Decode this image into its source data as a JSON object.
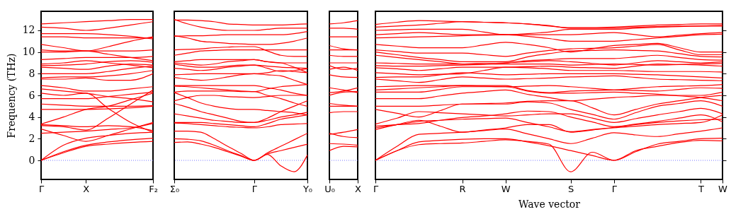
{
  "chart_data": [
    {
      "type": "line",
      "ylabel": "Frequency (THz)",
      "categories": [
        "Γ",
        null,
        "X",
        null,
        null,
        "F₂"
      ],
      "ylim": [
        -1.76,
        13.76
      ],
      "yticks": [
        0,
        2,
        4,
        6,
        8,
        10,
        12
      ],
      "ref_lines": [
        {
          "axis": "y",
          "value": 0,
          "color": "#5555ff",
          "line_style": "dotted"
        }
      ],
      "series": [
        {
          "color": "#ff0000",
          "values": [
            0,
            0.7,
            1.3,
            1.5,
            1.65,
            1.75
          ]
        },
        {
          "color": "#ff0000",
          "values": [
            0,
            0.8,
            1.4,
            1.7,
            1.9,
            2.05
          ]
        },
        {
          "color": "#ff0000",
          "values": [
            0,
            1.4,
            2.05,
            2.3,
            2.5,
            2.6
          ]
        },
        {
          "color": "#ff0000",
          "values": [
            2.9,
            2.3,
            1.75,
            2.3,
            2.9,
            3.5
          ]
        },
        {
          "color": "#ff0000",
          "values": [
            2.5,
            2.6,
            2.7,
            2.85,
            3.0,
            3.4
          ]
        },
        {
          "color": "#ff0000",
          "values": [
            3.2,
            3.1,
            2.8,
            3.9,
            5.2,
            6.5
          ]
        },
        {
          "color": "#ff0000",
          "values": [
            3.3,
            3.2,
            3.1,
            3.2,
            3.1,
            2.75
          ]
        },
        {
          "color": "#ff0000",
          "values": [
            3.35,
            4.0,
            4.7,
            5.0,
            5.6,
            6.2
          ]
        },
        {
          "color": "#ff0000",
          "values": [
            4.7,
            4.7,
            4.7,
            4.75,
            4.85,
            5.0
          ]
        },
        {
          "color": "#ff0000",
          "values": [
            5.2,
            5.1,
            5.0,
            5.0,
            5.0,
            5.05
          ]
        },
        {
          "color": "#ff0000",
          "values": [
            5.7,
            5.7,
            5.7,
            5.9,
            6.1,
            6.3
          ]
        },
        {
          "color": "#ff0000",
          "values": [
            6.2,
            6.0,
            6.2,
            4.8,
            3.5,
            2.6
          ]
        },
        {
          "color": "#ff0000",
          "values": [
            6.6,
            6.4,
            6.2,
            5.9,
            5.7,
            5.4
          ]
        },
        {
          "color": "#ff0000",
          "values": [
            6.9,
            6.7,
            6.4,
            6.4,
            6.6,
            6.8
          ]
        },
        {
          "color": "#ff0000",
          "values": [
            7.5,
            7.5,
            7.6,
            7.4,
            7.4,
            8.0
          ]
        },
        {
          "color": "#ff0000",
          "values": [
            7.6,
            7.7,
            7.7,
            7.8,
            8.0,
            8.3
          ]
        },
        {
          "color": "#ff0000",
          "values": [
            8.0,
            8.0,
            8.0,
            8.2,
            8.5,
            8.7
          ]
        },
        {
          "color": "#ff0000",
          "values": [
            8.6,
            8.5,
            8.4,
            8.7,
            8.9,
            8.8
          ]
        },
        {
          "color": "#ff0000",
          "values": [
            8.75,
            8.8,
            8.9,
            9.1,
            9.2,
            9.05
          ]
        },
        {
          "color": "#ff0000",
          "values": [
            8.9,
            9.0,
            9.2,
            9.0,
            8.8,
            8.55
          ]
        },
        {
          "color": "#ff0000",
          "values": [
            9.3,
            9.4,
            9.5,
            9.5,
            9.5,
            9.6
          ]
        },
        {
          "color": "#ff0000",
          "values": [
            10.0,
            10.0,
            10.1,
            9.8,
            9.5,
            9.2
          ]
        },
        {
          "color": "#ff0000",
          "values": [
            10.2,
            10.1,
            10.1,
            10.5,
            11.0,
            11.4
          ]
        },
        {
          "color": "#ff0000",
          "values": [
            10.7,
            10.4,
            10.1,
            10.1,
            10.1,
            10.2
          ]
        },
        {
          "color": "#ff0000",
          "values": [
            11.4,
            11.4,
            11.3,
            11.3,
            11.3,
            11.3
          ]
        },
        {
          "color": "#ff0000",
          "values": [
            11.7,
            11.7,
            11.7,
            11.6,
            11.45,
            11.2
          ]
        },
        {
          "color": "#ff0000",
          "values": [
            12.3,
            12.2,
            12.0,
            12.2,
            12.5,
            12.8
          ]
        },
        {
          "color": "#ff0000",
          "values": [
            12.6,
            12.7,
            12.8,
            12.9,
            13.0,
            13.0
          ]
        }
      ]
    },
    {
      "type": "line",
      "tick_labels": "x",
      "categories": [
        "Σ₀",
        null,
        null,
        null,
        null,
        null,
        "Γ",
        null,
        null,
        null,
        "Y₀"
      ],
      "ylim": [
        -1.76,
        13.76
      ],
      "ref_lines": [
        {
          "axis": "y",
          "value": 0,
          "color": "#5555ff",
          "line_style": "dotted"
        }
      ],
      "series": [
        {
          "color": "#ff0000",
          "values": [
            1.65,
            1.7,
            1.5,
            1.2,
            0.8,
            0.4,
            0,
            0.55,
            -0.5,
            -1.05,
            0.5
          ]
        },
        {
          "color": "#ff0000",
          "values": [
            2.0,
            1.95,
            1.8,
            1.4,
            0.9,
            0.45,
            0,
            0.6,
            0.9,
            1.2,
            1.5
          ]
        },
        {
          "color": "#ff0000",
          "values": [
            2.7,
            2.7,
            2.6,
            2.0,
            1.3,
            0.65,
            0,
            0.7,
            1.3,
            1.9,
            2.5
          ]
        },
        {
          "color": "#ff0000",
          "values": [
            3.45,
            3.4,
            3.3,
            3.2,
            3.1,
            3.05,
            3.0,
            3.1,
            3.3,
            3.35,
            3.4
          ]
        },
        {
          "color": "#ff0000",
          "values": [
            3.5,
            3.5,
            3.5,
            3.4,
            3.3,
            3.2,
            3.1,
            3.4,
            3.8,
            4.0,
            4.2
          ]
        },
        {
          "color": "#ff0000",
          "values": [
            4.3,
            4.1,
            3.9,
            3.7,
            3.6,
            3.5,
            3.5,
            3.7,
            4.0,
            4.2,
            4.45
          ]
        },
        {
          "color": "#ff0000",
          "values": [
            5.25,
            4.9,
            4.5,
            4.2,
            3.9,
            3.6,
            3.5,
            3.9,
            4.5,
            5.0,
            5.5
          ]
        },
        {
          "color": "#ff0000",
          "values": [
            5.5,
            5.8,
            6.0,
            6.0,
            5.9,
            5.85,
            5.8,
            5.9,
            6.0,
            6.0,
            6.0
          ]
        },
        {
          "color": "#ff0000",
          "values": [
            6.25,
            5.8,
            5.3,
            5.0,
            4.8,
            4.7,
            4.7,
            4.6,
            4.5,
            4.4,
            4.2
          ]
        },
        {
          "color": "#ff0000",
          "values": [
            6.3,
            6.4,
            6.4,
            6.4,
            6.4,
            6.35,
            6.35,
            6.0,
            5.7,
            5.3,
            5.0
          ]
        },
        {
          "color": "#ff0000",
          "values": [
            6.9,
            6.9,
            6.9,
            6.9,
            6.9,
            6.9,
            6.9,
            6.7,
            6.5,
            6.2,
            6.0
          ]
        },
        {
          "color": "#ff0000",
          "values": [
            6.85,
            6.8,
            6.7,
            6.6,
            6.5,
            6.4,
            6.35,
            6.6,
            6.8,
            6.9,
            7.0
          ]
        },
        {
          "color": "#ff0000",
          "values": [
            7.65,
            7.5,
            7.4,
            7.5,
            7.7,
            7.9,
            8.0,
            7.9,
            7.8,
            7.4,
            7.0
          ]
        },
        {
          "color": "#ff0000",
          "values": [
            7.9,
            7.95,
            8.0,
            8.0,
            8.0,
            8.0,
            8.0,
            8.1,
            8.3,
            8.2,
            8.1
          ]
        },
        {
          "color": "#ff0000",
          "values": [
            8.5,
            8.4,
            8.3,
            8.4,
            8.6,
            8.7,
            8.8,
            8.7,
            8.6,
            8.55,
            8.5
          ]
        },
        {
          "color": "#ff0000",
          "values": [
            8.9,
            8.7,
            8.6,
            8.6,
            8.7,
            8.8,
            8.8,
            8.5,
            8.2,
            8.3,
            8.45
          ]
        },
        {
          "color": "#ff0000",
          "values": [
            9.1,
            9.2,
            9.3,
            9.3,
            9.3,
            9.3,
            9.3,
            9.1,
            9.0,
            8.6,
            8.1
          ]
        },
        {
          "color": "#ff0000",
          "values": [
            9.0,
            8.9,
            8.8,
            8.9,
            9.1,
            9.2,
            9.3,
            9.1,
            9.0,
            9.0,
            9.0
          ]
        },
        {
          "color": "#ff0000",
          "values": [
            9.7,
            9.9,
            10.1,
            10.15,
            10.2,
            10.2,
            10.2,
            10.2,
            10.2,
            10.2,
            10.2
          ]
        },
        {
          "color": "#ff0000",
          "values": [
            10.2,
            10.25,
            10.3,
            10.4,
            10.45,
            10.5,
            10.5,
            10.1,
            9.7,
            9.6,
            9.6
          ]
        },
        {
          "color": "#ff0000",
          "values": [
            11.5,
            11.3,
            11.0,
            10.9,
            10.8,
            10.75,
            10.7,
            10.7,
            10.8,
            11.0,
            11.3
          ]
        },
        {
          "color": "#ff0000",
          "values": [
            11.45,
            11.5,
            11.5,
            11.55,
            11.6,
            11.6,
            11.6,
            11.6,
            11.6,
            11.7,
            11.9
          ]
        },
        {
          "color": "#ff0000",
          "values": [
            13.0,
            12.6,
            12.3,
            12.1,
            12.0,
            12.0,
            12.0,
            12.1,
            12.2,
            12.2,
            12.2
          ]
        },
        {
          "color": "#ff0000",
          "values": [
            12.95,
            12.95,
            12.9,
            12.8,
            12.6,
            12.55,
            12.5,
            12.5,
            12.5,
            12.55,
            12.6
          ]
        }
      ]
    },
    {
      "type": "line",
      "tick_labels": "x",
      "categories": [
        "U₀",
        null,
        "X"
      ],
      "ylim": [
        -1.76,
        13.76
      ],
      "ref_lines": [
        {
          "axis": "y",
          "value": 0,
          "color": "#5555ff",
          "line_style": "dotted"
        }
      ],
      "series": [
        {
          "color": "#ff0000",
          "values": [
            0.9,
            1.3,
            1.25
          ]
        },
        {
          "color": "#ff0000",
          "values": [
            1.55,
            1.5,
            1.4
          ]
        },
        {
          "color": "#ff0000",
          "values": [
            2.5,
            2.2,
            2.1
          ]
        },
        {
          "color": "#ff0000",
          "values": [
            2.4,
            2.6,
            2.85
          ]
        },
        {
          "color": "#ff0000",
          "values": [
            4.4,
            4.5,
            4.5
          ]
        },
        {
          "color": "#ff0000",
          "values": [
            5.0,
            5.0,
            5.0
          ]
        },
        {
          "color": "#ff0000",
          "values": [
            5.25,
            5.1,
            5.0
          ]
        },
        {
          "color": "#ff0000",
          "values": [
            6.0,
            6.3,
            6.35
          ]
        },
        {
          "color": "#ff0000",
          "values": [
            6.25,
            6.4,
            6.7
          ]
        },
        {
          "color": "#ff0000",
          "values": [
            6.7,
            6.5,
            6.25
          ]
        },
        {
          "color": "#ff0000",
          "values": [
            7.9,
            7.7,
            7.65
          ]
        },
        {
          "color": "#ff0000",
          "values": [
            8.4,
            8.6,
            8.3
          ]
        },
        {
          "color": "#ff0000",
          "values": [
            8.75,
            8.4,
            8.5
          ]
        },
        {
          "color": "#ff0000",
          "values": [
            9.0,
            9.0,
            9.0
          ]
        },
        {
          "color": "#ff0000",
          "values": [
            9.7,
            9.6,
            9.6
          ]
        },
        {
          "color": "#ff0000",
          "values": [
            10.2,
            10.2,
            10.2
          ]
        },
        {
          "color": "#ff0000",
          "values": [
            10.6,
            10.3,
            10.2
          ]
        },
        {
          "color": "#ff0000",
          "values": [
            11.4,
            11.4,
            11.4
          ]
        },
        {
          "color": "#ff0000",
          "values": [
            12.2,
            12.2,
            12.1
          ]
        },
        {
          "color": "#ff0000",
          "values": [
            12.6,
            12.7,
            12.9
          ]
        }
      ]
    },
    {
      "type": "line",
      "tick_labels": "x",
      "xlabel": "Wave vector",
      "categories": [
        "Γ",
        null,
        null,
        null,
        "R",
        null,
        "W",
        null,
        null,
        "S",
        null,
        "Γ",
        null,
        null,
        null,
        "T",
        "W"
      ],
      "ylim": [
        -1.76,
        13.76
      ],
      "yticks": [
        0,
        2,
        4,
        6,
        8,
        10,
        12
      ],
      "ref_lines": [
        {
          "axis": "y",
          "value": 0,
          "color": "#5555ff",
          "line_style": "dotted"
        }
      ],
      "series": [
        {
          "color": "#ff0000",
          "values": [
            0,
            0.9,
            1.45,
            1.55,
            1.6,
            1.75,
            1.9,
            1.75,
            1.5,
            -1.05,
            0.75,
            0,
            0.9,
            1.3,
            1.65,
            1.85,
            1.8
          ]
        },
        {
          "color": "#ff0000",
          "values": [
            0,
            0.9,
            1.7,
            1.85,
            1.95,
            2.0,
            2.0,
            1.7,
            1.35,
            0.9,
            0.45,
            0,
            0.8,
            1.5,
            1.75,
            2.0,
            2.05
          ]
        },
        {
          "color": "#ff0000",
          "values": [
            0,
            1.3,
            2.4,
            2.5,
            2.6,
            2.75,
            2.9,
            2.45,
            2.0,
            1.55,
            2.05,
            2.55,
            2.35,
            2.2,
            2.45,
            2.7,
            3.0
          ]
        },
        {
          "color": "#ff0000",
          "values": [
            2.85,
            3.3,
            3.7,
            3.15,
            2.6,
            2.8,
            3.0,
            3.3,
            3.3,
            2.6,
            2.8,
            3.0,
            3.15,
            3.3,
            3.4,
            3.5,
            4.2
          ]
        },
        {
          "color": "#ff0000",
          "values": [
            3.0,
            3.3,
            3.6,
            3.7,
            3.8,
            3.85,
            3.9,
            3.5,
            3.1,
            2.65,
            2.85,
            3.05,
            3.3,
            3.5,
            3.65,
            3.75,
            3.8
          ]
        },
        {
          "color": "#ff0000",
          "values": [
            3.15,
            3.3,
            3.4,
            3.7,
            3.95,
            4.1,
            4.3,
            4.55,
            4.5,
            4.0,
            3.55,
            3.1,
            3.35,
            3.6,
            3.9,
            4.2,
            3.55
          ]
        },
        {
          "color": "#ff0000",
          "values": [
            3.35,
            3.9,
            4.5,
            4.4,
            4.3,
            4.2,
            4.1,
            4.2,
            4.3,
            4.3,
            3.9,
            3.5,
            3.85,
            4.2,
            4.5,
            4.8,
            4.3
          ]
        },
        {
          "color": "#ff0000",
          "values": [
            4.7,
            4.35,
            4.0,
            4.6,
            5.2,
            5.2,
            5.2,
            5.4,
            5.3,
            4.7,
            4.25,
            3.8,
            4.4,
            5.0,
            5.25,
            5.5,
            5.0
          ]
        },
        {
          "color": "#ff0000",
          "values": [
            5.0,
            5.0,
            5.0,
            5.1,
            5.2,
            5.25,
            5.3,
            5.45,
            5.5,
            5.5,
            4.85,
            4.2,
            4.7,
            5.2,
            5.5,
            5.8,
            6.0
          ]
        },
        {
          "color": "#ff0000",
          "values": [
            5.7,
            5.7,
            5.7,
            5.95,
            6.2,
            6.35,
            6.5,
            6.1,
            5.8,
            5.5,
            5.65,
            5.8,
            5.9,
            6.0,
            6.0,
            6.0,
            6.3
          ]
        },
        {
          "color": "#ff0000",
          "values": [
            6.3,
            6.3,
            6.3,
            6.55,
            6.8,
            6.8,
            6.8,
            6.4,
            6.2,
            6.2,
            6.25,
            6.3,
            6.2,
            6.1,
            5.95,
            5.8,
            5.5
          ]
        },
        {
          "color": "#ff0000",
          "values": [
            6.5,
            6.6,
            6.7,
            6.8,
            6.9,
            6.9,
            6.9,
            6.45,
            6.25,
            6.4,
            6.45,
            6.5,
            6.45,
            6.4,
            6.55,
            6.7,
            6.65
          ]
        },
        {
          "color": "#ff0000",
          "values": [
            6.8,
            6.85,
            6.9,
            6.9,
            6.9,
            6.85,
            6.8,
            6.85,
            6.9,
            6.8,
            6.65,
            6.5,
            6.65,
            6.8,
            6.85,
            6.9,
            7.0
          ]
        },
        {
          "color": "#ff0000",
          "values": [
            7.5,
            7.35,
            7.2,
            7.45,
            7.7,
            7.6,
            7.5,
            7.55,
            7.6,
            7.7,
            7.75,
            7.8,
            7.65,
            7.5,
            7.45,
            7.4,
            7.35
          ]
        },
        {
          "color": "#ff0000",
          "values": [
            7.65,
            7.7,
            7.7,
            7.9,
            8.1,
            8.0,
            7.9,
            7.95,
            8.0,
            8.0,
            8.0,
            8.0,
            7.95,
            7.9,
            7.8,
            7.7,
            7.6
          ]
        },
        {
          "color": "#ff0000",
          "values": [
            8.1,
            8.0,
            7.9,
            7.95,
            8.0,
            8.3,
            8.6,
            8.55,
            8.45,
            8.3,
            8.3,
            8.3,
            8.25,
            8.2,
            8.2,
            8.2,
            8.15
          ]
        },
        {
          "color": "#ff0000",
          "values": [
            8.55,
            8.45,
            8.3,
            8.45,
            8.6,
            8.6,
            8.6,
            8.65,
            8.7,
            8.6,
            8.55,
            8.5,
            8.7,
            8.9,
            8.85,
            8.8,
            8.7
          ]
        },
        {
          "color": "#ff0000",
          "values": [
            8.75,
            8.7,
            8.7,
            8.75,
            8.8,
            8.85,
            8.9,
            8.9,
            8.9,
            8.8,
            8.85,
            8.9,
            8.85,
            8.8,
            8.85,
            8.9,
            8.95
          ]
        },
        {
          "color": "#ff0000",
          "values": [
            9.0,
            8.95,
            8.9,
            8.9,
            8.9,
            8.95,
            9.0,
            9.1,
            9.2,
            9.1,
            8.95,
            8.8,
            9.0,
            9.2,
            9.1,
            9.0,
            9.1
          ]
        },
        {
          "color": "#ff0000",
          "values": [
            9.7,
            9.5,
            9.3,
            9.1,
            8.9,
            8.95,
            9.0,
            9.2,
            9.3,
            9.4,
            9.4,
            9.4,
            9.55,
            9.7,
            9.5,
            9.3,
            9.25
          ]
        },
        {
          "color": "#ff0000",
          "values": [
            10.0,
            9.75,
            9.5,
            9.3,
            9.1,
            9.1,
            9.1,
            9.55,
            9.85,
            10.1,
            10.15,
            10.2,
            10.15,
            10.1,
            9.85,
            9.6,
            9.55
          ]
        },
        {
          "color": "#ff0000",
          "values": [
            10.2,
            10.05,
            9.9,
            9.9,
            9.9,
            9.75,
            9.6,
            9.9,
            10.15,
            10.3,
            10.35,
            10.4,
            10.55,
            10.7,
            10.2,
            9.75,
            9.75
          ]
        },
        {
          "color": "#ff0000",
          "values": [
            10.7,
            10.55,
            10.4,
            10.4,
            10.4,
            10.65,
            10.9,
            10.7,
            10.4,
            10.0,
            10.3,
            10.6,
            10.7,
            10.8,
            10.4,
            10.0,
            10.0
          ]
        },
        {
          "color": "#ff0000",
          "values": [
            11.3,
            11.35,
            11.4,
            11.45,
            11.5,
            11.55,
            11.6,
            11.45,
            11.25,
            11.0,
            11.0,
            11.0,
            11.15,
            11.3,
            11.45,
            11.6,
            11.65
          ]
        },
        {
          "color": "#ff0000",
          "values": [
            11.6,
            11.7,
            11.8,
            11.7,
            11.6,
            11.6,
            11.6,
            11.6,
            11.6,
            11.6,
            11.7,
            11.8,
            11.6,
            11.4,
            11.55,
            11.7,
            11.8
          ]
        },
        {
          "color": "#ff0000",
          "values": [
            12.0,
            12.05,
            12.1,
            12.1,
            12.1,
            11.85,
            11.6,
            11.7,
            11.85,
            12.1,
            12.1,
            12.1,
            12.2,
            12.3,
            12.35,
            12.4,
            12.45
          ]
        },
        {
          "color": "#ff0000",
          "values": [
            12.3,
            12.4,
            12.5,
            12.65,
            12.8,
            12.75,
            12.7,
            12.6,
            12.45,
            12.2,
            12.2,
            12.2,
            12.3,
            12.35,
            12.4,
            12.4,
            12.4
          ]
        },
        {
          "color": "#ff0000",
          "values": [
            12.55,
            12.75,
            12.9,
            12.85,
            12.8,
            12.75,
            12.7,
            12.6,
            12.4,
            12.25,
            12.25,
            12.3,
            12.4,
            12.5,
            12.55,
            12.6,
            12.6
          ]
        }
      ]
    }
  ]
}
